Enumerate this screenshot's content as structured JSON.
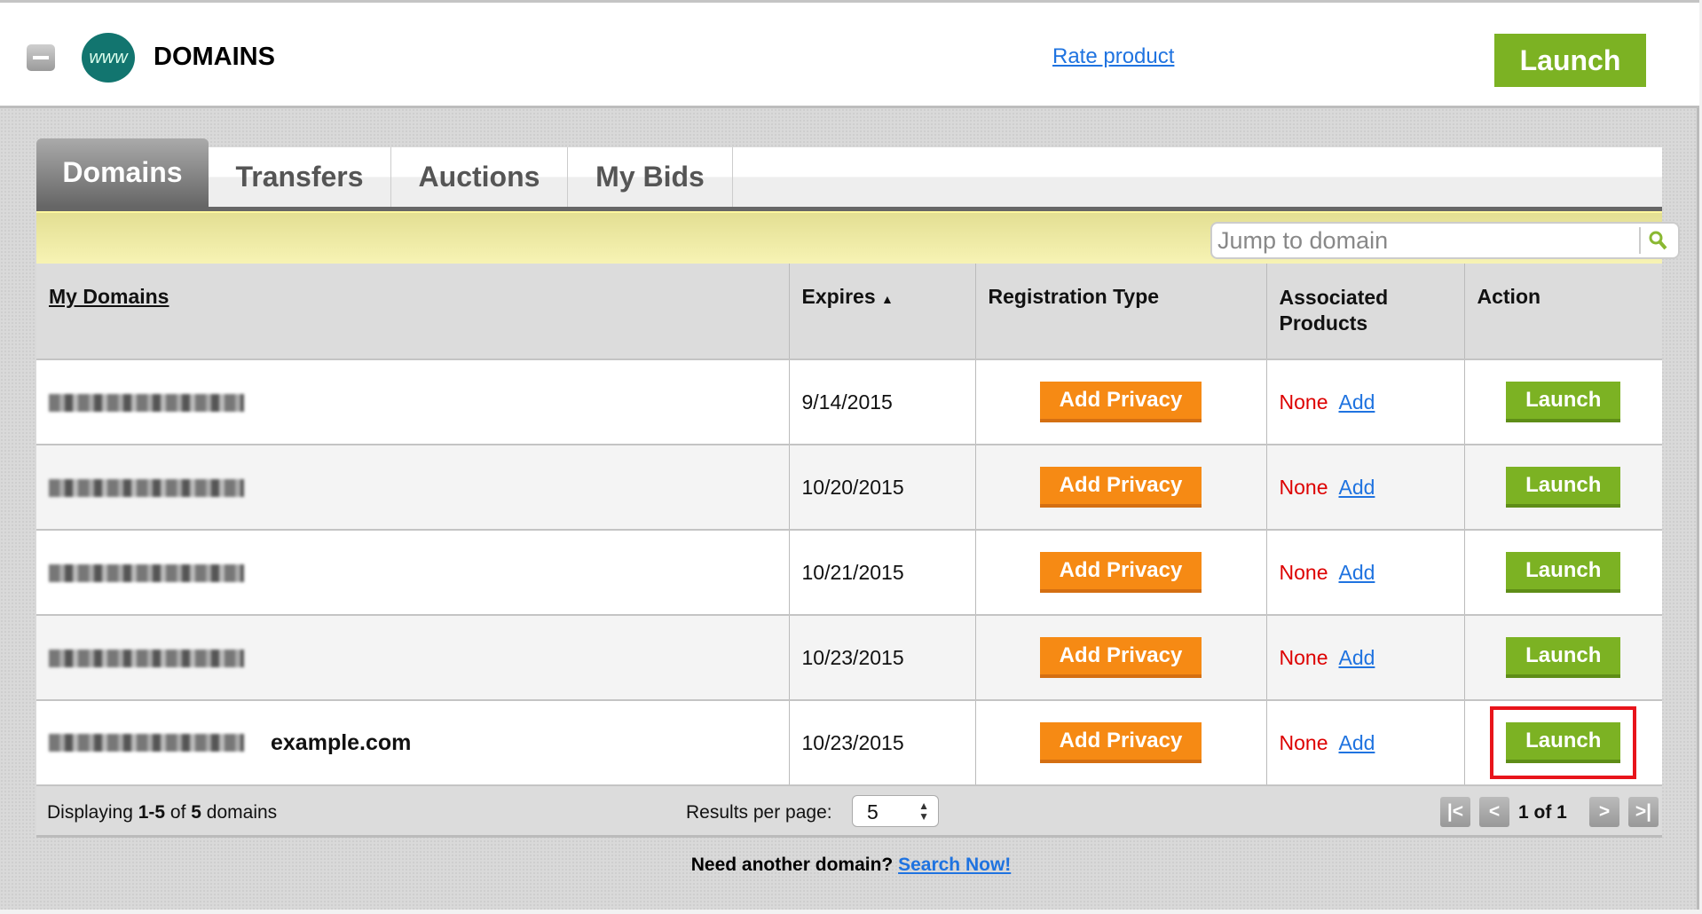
{
  "header": {
    "title": "DOMAINS",
    "logo_text": "www",
    "rate_link": "Rate product",
    "launch_label": "Launch"
  },
  "tabs": [
    {
      "label": "Domains",
      "active": true
    },
    {
      "label": "Transfers"
    },
    {
      "label": "Auctions"
    },
    {
      "label": "My Bids"
    }
  ],
  "search": {
    "placeholder": "Jump to domain"
  },
  "table": {
    "columns": [
      "My Domains",
      "Expires",
      "Registration Type",
      "Associated Products",
      "Action"
    ],
    "sort": {
      "column": "Expires",
      "direction": "ascending"
    },
    "rows": [
      {
        "expires": "9/14/2015",
        "privacy": "Add Privacy",
        "products": "None",
        "add": "Add",
        "action": "Launch"
      },
      {
        "expires": "10/20/2015",
        "privacy": "Add Privacy",
        "products": "None",
        "add": "Add",
        "action": "Launch"
      },
      {
        "expires": "10/21/2015",
        "privacy": "Add Privacy",
        "products": "None",
        "add": "Add",
        "action": "Launch"
      },
      {
        "expires": "10/23/2015",
        "privacy": "Add Privacy",
        "products": "None",
        "add": "Add",
        "action": "Launch"
      },
      {
        "label": "example.com",
        "expires": "10/23/2015",
        "privacy": "Add Privacy",
        "products": "None",
        "add": "Add",
        "action": "Launch",
        "highlighted": true
      }
    ]
  },
  "footer": {
    "displaying_prefix": "Displaying ",
    "range": "1-5",
    "of": " of ",
    "total": "5",
    "suffix": " domains",
    "results_label": "Results per page:",
    "results_value": "5",
    "page_text": "1 of 1"
  },
  "bottom": {
    "text": "Need another domain? ",
    "link": "Search Now!"
  },
  "colors": {
    "launch": "#7cb223",
    "privacy": "#f68a14",
    "none": "#dd0000",
    "link": "#1f73e0",
    "highlight": "#e8141b"
  }
}
